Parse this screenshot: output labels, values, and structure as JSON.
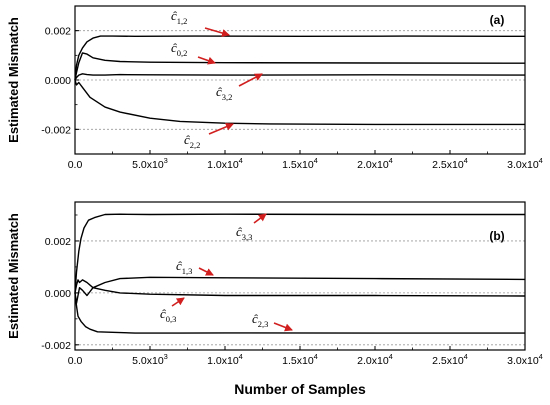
{
  "chart_data": [
    {
      "type": "line",
      "panel_label": "(a)",
      "ylabel": "Estimated Mismatch",
      "xlabel": "",
      "xlim": [
        0,
        30000
      ],
      "ylim": [
        -0.003,
        0.003
      ],
      "x_ticks": [
        {
          "value": 0,
          "mant": "0.0",
          "exp": ""
        },
        {
          "value": 5000,
          "mant": "5.0x10",
          "exp": "3"
        },
        {
          "value": 10000,
          "mant": "1.0x10",
          "exp": "4"
        },
        {
          "value": 15000,
          "mant": "1.5x10",
          "exp": "4"
        },
        {
          "value": 20000,
          "mant": "2.0x10",
          "exp": "4"
        },
        {
          "value": 25000,
          "mant": "2.5x10",
          "exp": "4"
        },
        {
          "value": 30000,
          "mant": "3.0x10",
          "exp": "4"
        }
      ],
      "y_ticks": [
        {
          "value": 0.002,
          "label": "0.002"
        },
        {
          "value": 0.0,
          "label": "0.000"
        },
        {
          "value": -0.002,
          "label": "-0.002"
        }
      ],
      "reference_lines": [
        0.002,
        0.0,
        -0.002
      ],
      "series": [
        {
          "name": "ĉ1,2",
          "x": [
            0,
            100,
            250,
            500,
            800,
            1200,
            1700,
            2500,
            4000,
            8000,
            15000,
            22000,
            30000
          ],
          "y": [
            0.0,
            0.0006,
            0.001,
            0.0013,
            0.00155,
            0.0017,
            0.00178,
            0.00178,
            0.00177,
            0.00178,
            0.00177,
            0.00178,
            0.00177
          ]
        },
        {
          "name": "ĉ0,2",
          "x": [
            0,
            100,
            250,
            500,
            800,
            1200,
            2000,
            3000,
            5000,
            10000,
            20000,
            30000
          ],
          "y": [
            0.0,
            0.0003,
            0.0007,
            0.0011,
            0.00105,
            0.0009,
            0.0008,
            0.00075,
            0.00072,
            0.0007,
            0.00069,
            0.00068
          ]
        },
        {
          "name": "ĉ3,2",
          "x": [
            0,
            100,
            250,
            500,
            800,
            1200,
            2000,
            3000,
            5000,
            10000,
            20000,
            30000
          ],
          "y": [
            0.0,
            0.0001,
            0.0002,
            0.00025,
            0.00022,
            0.0002,
            0.0002,
            0.00022,
            0.00021,
            0.0002,
            0.00021,
            0.0002
          ]
        },
        {
          "name": "ĉ2,2",
          "x": [
            0,
            100,
            250,
            500,
            1000,
            2000,
            3000,
            5000,
            7000,
            10000,
            13000,
            20000,
            30000
          ],
          "y": [
            0.0,
            -0.0002,
            -0.0001,
            -0.0003,
            -0.0007,
            -0.0011,
            -0.0013,
            -0.00155,
            -0.00168,
            -0.00175,
            -0.00178,
            -0.0018,
            -0.0018
          ]
        }
      ],
      "annotations": [
        {
          "base": "ĉ",
          "sub": "1,2",
          "points_to": "ĉ1,2"
        },
        {
          "base": "ĉ",
          "sub": "0,2",
          "points_to": "ĉ0,2"
        },
        {
          "base": "ĉ",
          "sub": "3,2",
          "points_to": "ĉ3,2"
        },
        {
          "base": "ĉ",
          "sub": "2,2",
          "points_to": "ĉ2,2"
        }
      ],
      "grid": false
    },
    {
      "type": "line",
      "panel_label": "(b)",
      "ylabel": "Estimated Mismatch",
      "xlabel": "Number of Samples",
      "xlim": [
        0,
        30000
      ],
      "ylim": [
        -0.0022,
        0.0035
      ],
      "x_ticks": [
        {
          "value": 0,
          "mant": "0.0",
          "exp": ""
        },
        {
          "value": 5000,
          "mant": "5.0x10",
          "exp": "3"
        },
        {
          "value": 10000,
          "mant": "1.0x10",
          "exp": "4"
        },
        {
          "value": 15000,
          "mant": "1.5x10",
          "exp": "4"
        },
        {
          "value": 20000,
          "mant": "2.0x10",
          "exp": "4"
        },
        {
          "value": 25000,
          "mant": "2.5x10",
          "exp": "4"
        },
        {
          "value": 30000,
          "mant": "3.0x10",
          "exp": "4"
        }
      ],
      "y_ticks": [
        {
          "value": 0.002,
          "label": "0.002"
        },
        {
          "value": 0.0,
          "label": "0.000"
        },
        {
          "value": -0.002,
          "label": "-0.002"
        }
      ],
      "reference_lines": [
        0.002,
        0.0,
        -0.002
      ],
      "series": [
        {
          "name": "ĉ3,3",
          "x": [
            0,
            100,
            250,
            400,
            600,
            900,
            1300,
            2000,
            3000,
            5000,
            10000,
            20000,
            30000
          ],
          "y": [
            0.0,
            0.0008,
            0.0016,
            0.0021,
            0.0025,
            0.0028,
            0.0029,
            0.00302,
            0.00303,
            0.00302,
            0.00303,
            0.00302,
            0.00302
          ]
        },
        {
          "name": "ĉ1,3",
          "x": [
            0,
            100,
            200,
            300,
            500,
            800,
            1200,
            2000,
            3000,
            5000,
            10000,
            20000,
            30000
          ],
          "y": [
            0.0,
            -0.0004,
            -0.0001,
            0.0002,
            0.0001,
            -0.0001,
            0.0002,
            0.0004,
            0.00055,
            0.0006,
            0.00058,
            0.00055,
            0.00052
          ]
        },
        {
          "name": "ĉ0,3",
          "x": [
            0,
            100,
            200,
            300,
            500,
            800,
            1200,
            2000,
            3000,
            5000,
            10000,
            20000,
            30000
          ],
          "y": [
            0.0,
            0.0003,
            0.0005,
            0.0004,
            0.0005,
            0.0004,
            0.0002,
            0.0001,
            0.0,
            -5e-05,
            -0.0001,
            -0.0001,
            -0.00012
          ]
        },
        {
          "name": "ĉ2,3",
          "x": [
            0,
            100,
            200,
            400,
            700,
            1000,
            1500,
            2500,
            4000,
            7000,
            10000,
            20000,
            30000
          ],
          "y": [
            0.0,
            -0.0005,
            -0.0009,
            -0.0011,
            -0.0013,
            -0.0014,
            -0.0015,
            -0.00152,
            -0.00155,
            -0.00155,
            -0.00154,
            -0.00155,
            -0.00155
          ]
        }
      ],
      "annotations": [
        {
          "base": "ĉ",
          "sub": "3,3",
          "points_to": "ĉ3,3"
        },
        {
          "base": "ĉ",
          "sub": "1,3",
          "points_to": "ĉ1,3"
        },
        {
          "base": "ĉ",
          "sub": "0,3",
          "points_to": "ĉ0,3"
        },
        {
          "base": "ĉ",
          "sub": "2,3",
          "points_to": "ĉ2,3"
        }
      ],
      "grid": false
    }
  ],
  "colors": {
    "line": "#000000",
    "arrow": "#d11f1f",
    "reference": "#9a9a9a"
  }
}
